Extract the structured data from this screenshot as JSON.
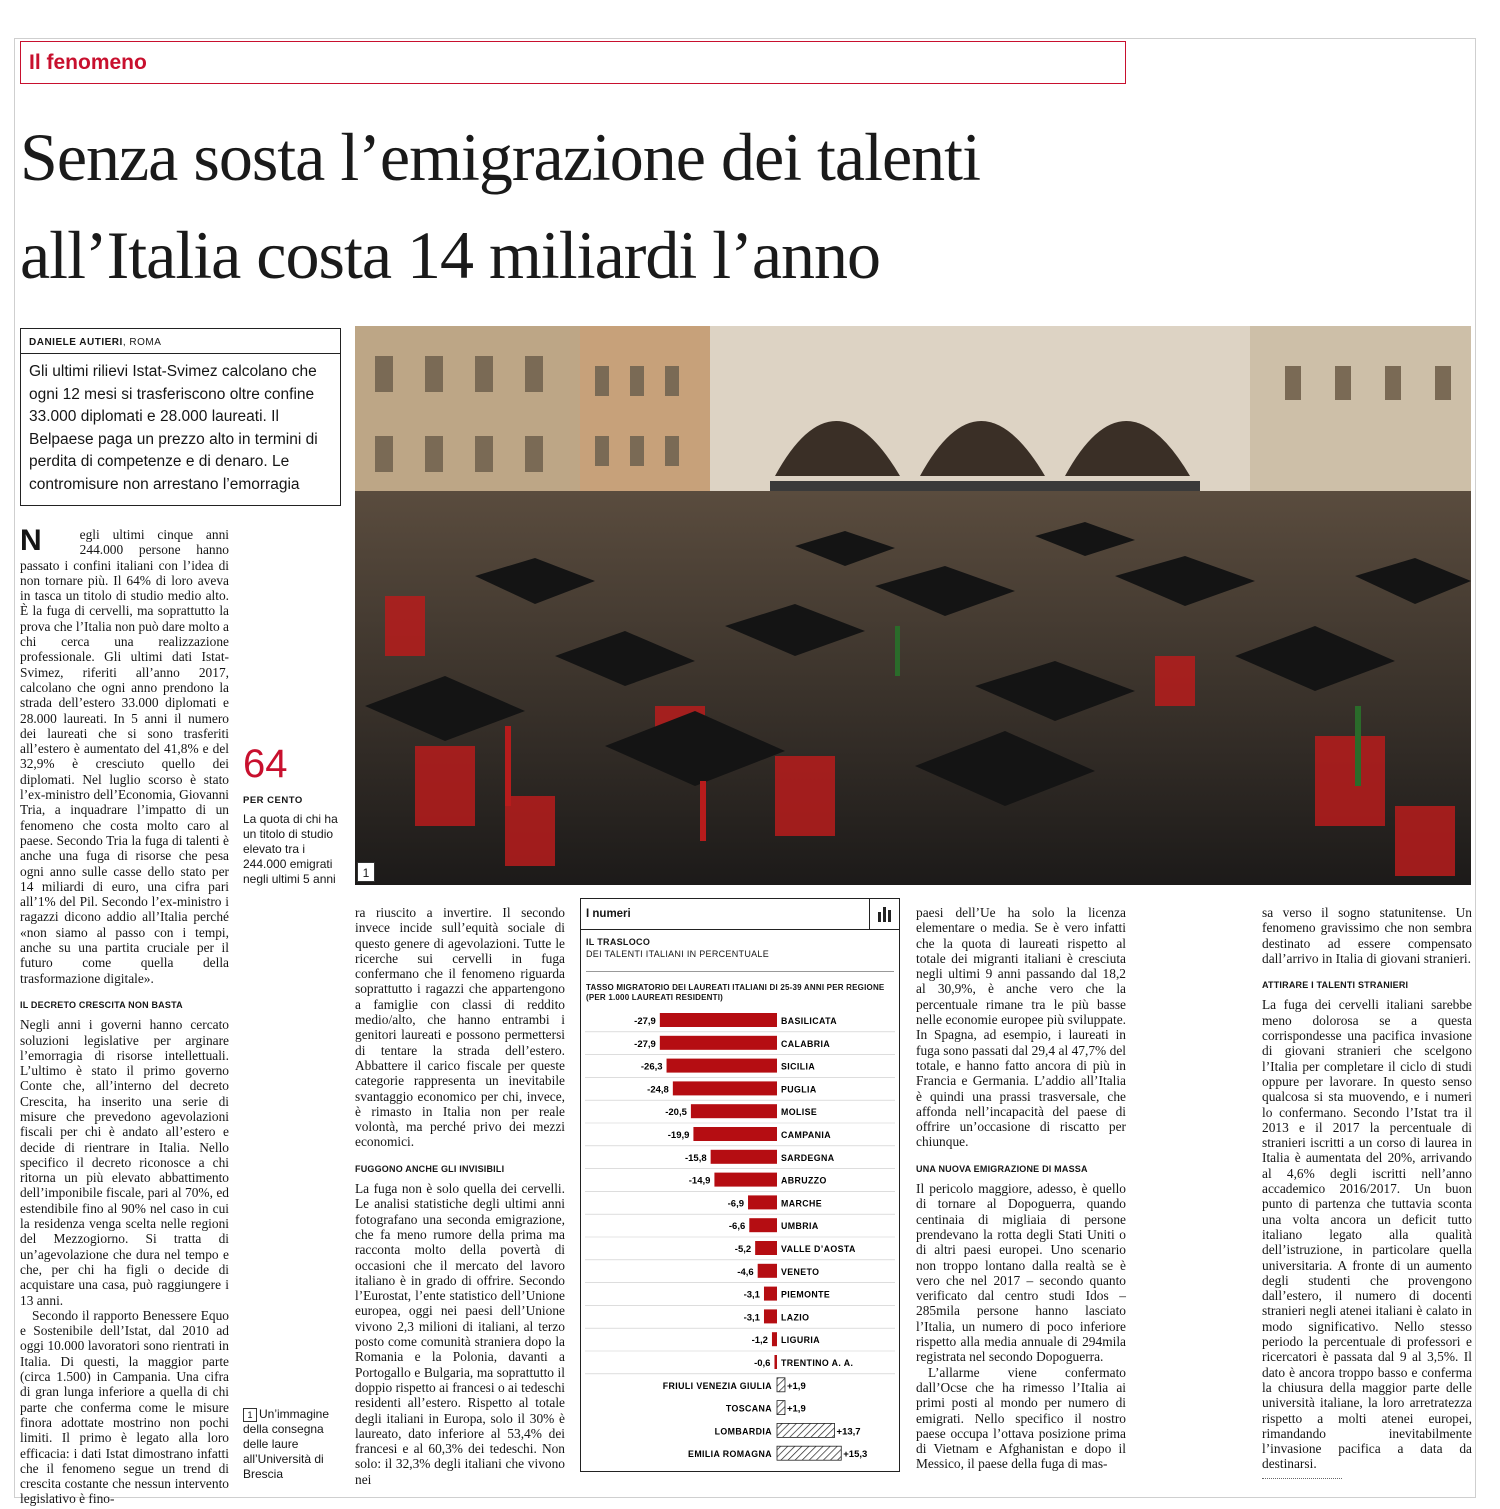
{
  "section": "Il fenomeno",
  "headline": {
    "line1": "Senza sosta l’emigrazione dei talenti",
    "line2": "all’Italia costa 14 miliardi l’anno"
  },
  "byline": {
    "author": "DANIELE AUTIERI",
    "location": ", ROMA"
  },
  "summary": "Gli ultimi rilievi Istat-Svimez calcolano che ogni 12 mesi si trasferiscono oltre confine 33.000 diplomati e 28.000 laureati. Il Belpaese paga un prezzo alto in termini di perdita di competenze e di denaro. Le contromisure non arrestano l’emorragia",
  "photo_number": "1",
  "stat": {
    "value": "64",
    "unit": "PER CENTO",
    "text": "La quota di chi ha un titolo di studio elevato tra i 244.000 emigrati negli ultimi 5 anni"
  },
  "caption": {
    "number": "1",
    "text": "Un’immagine della consegna delle laure all’Università di Brescia"
  },
  "column1": {
    "dropcap": "N",
    "lead": "egli ultimi cinque anni 244.000 persone hanno passato i confini italiani con l’idea di non tornare più. Il 64% di loro aveva in tasca un titolo di studio medio alto. È la fuga di cervelli, ma soprattutto la prova che l’Italia non può dare molto a chi cerca una realizzazione professionale. Gli ultimi dati Istat-Svimez, riferiti all’anno 2017, calcolano che ogni anno prendono la strada dell’estero 33.000 diplomati e 28.000 laureati. In 5 anni il numero dei laureati che si sono trasferiti all’estero è aumentato del 41,8% e del 32,9% è cresciuto quello dei diplomati. Nel luglio scorso è stato l’ex-ministro dell’Economia, Giovanni Tria, a inquadrare l’impatto di un fenomeno che costa molto caro al paese. Secondo Tria la fuga di talenti è anche una fuga di risorse che pesa ogni anno sulle casse dello stato per 14 miliardi di euro, una cifra pari all’1% del Pil. Secondo l’ex-ministro i ragazzi dicono addio all’Italia perché «non siamo al passo con i tempi, anche su una partita cruciale per il futuro come quella della trasformazione digitale».",
    "heading": "IL DECRETO CRESCITA NON BASTA",
    "p2": "Negli anni i governi hanno cercato soluzioni legislative per arginare l’emorragia di risorse intellettuali. L’ultimo è stato il primo governo Conte che, all’interno del decreto Crescita, ha inserito una serie di misure che prevedono agevolazioni fiscali per chi è andato all’estero e decide di rientrare in Italia. Nello specifico il decreto riconosce a chi ritorna un più elevato abbattimento dell’imponibile fiscale, pari al 70%, ed estendibile fino al 90% nel caso in cui la residenza venga scelta nelle regioni del Mezzogiorno. Si tratta di un’agevolazione che dura nel tempo e che, per chi ha figli o decide di acquistare una casa, può raggiungere i 13 anni.",
    "p3": "Secondo il rapporto Benessere Equo e Sostenibile dell’Istat, dal 2010 ad oggi 10.000 lavoratori sono rientrati in Italia. Di questi, la maggior parte (circa 1.500) in Campania. Una cifra di gran lunga inferiore a quella di chi parte che conferma come le misure finora adottate mostrino non pochi limiti. Il primo è legato alla loro efficacia: i dati Istat dimostrano infatti che il fenomeno segue un trend di crescita costante che nessun intervento legislativo è fino-"
  },
  "column2": {
    "p1": "ra riuscito a invertire. Il secondo invece incide sull’equità sociale di questo genere di agevolazioni. Tutte le ricerche sui cervelli in fuga confermano che il fenomeno riguarda soprattutto i ragazzi che appartengono a famiglie con classi di reddito medio/alto, che hanno entrambi i genitori laureati e possono permettersi di tentare la strada dell’estero. Abbattere il carico fiscale per queste categorie rappresenta un inevitabile svantaggio economico per chi, invece, è rimasto in Italia non per reale volontà, ma perché privo dei mezzi economici.",
    "heading": "FUGGONO ANCHE GLI INVISIBILI",
    "p2": "La fuga non è solo quella dei cervelli. Le analisi statistiche degli ultimi anni fotografano una seconda emigrazione, che fa meno rumore della prima ma racconta molto della povertà di occasioni che il mercato del lavoro italiano è in grado di offrire. Secondo l’Eurostat, l’ente statistico dell’Unione europea, oggi nei paesi dell’Unione vivono 2,3 milioni di italiani, al terzo posto come comunità straniera dopo la Romania e la Polonia, davanti a Portogallo e Bulgaria, ma soprattutto il doppio rispetto ai francesi o ai tedeschi residenti all’estero. Rispetto al totale degli italiani in Europa, solo il 30% è laureato, dato inferiore al 53,4% dei francesi e al 60,3% dei tedeschi. Non solo: il 32,3% degli italiani che vivono nei"
  },
  "column3": {
    "p1": "paesi dell’Ue ha solo la licenza elementare o media. Se è vero infatti che la quota di laureati rispetto al totale dei migranti italiani è cresciuta negli ultimi 9 anni passando dal 18,2 al 30,9%, è anche vero che la percentuale rimane tra le più basse nelle economie europee più sviluppate. In Spagna, ad esempio, i laureati in fuga sono passati dal 29,4 al 47,7% del totale, e hanno fatto ancora di più in Francia e Germania. L’addio all’Italia è quindi una prassi trasversale, che affonda nell’incapacità del paese di offrire un’occasione di riscatto per chiunque.",
    "heading": "UNA NUOVA EMIGRAZIONE DI MASSA",
    "p2": "Il pericolo maggiore, adesso, è quello di tornare al Dopoguerra, quando centinaia di migliaia di persone prendevano la rotta degli Stati Uniti o di altri paesi europei. Uno scenario non troppo lontano dalla realtà se è vero che nel 2017 – secondo quanto verificato dal centro studi Idos – 285mila persone hanno lasciato l’Italia, un numero di poco inferiore rispetto alla media annuale di 294mila registrata nel secondo Dopoguerra.",
    "p3": "L’allarme viene confermato dall’Ocse che ha rimesso l’Italia ai primi posti al mondo per numero di emigrati. Nello specifico il nostro paese occupa l’ottava posizione prima di Vietnam e Afghanistan e dopo il Messico, il paese della fuga di mas-"
  },
  "column4": {
    "p1": "sa verso il sogno statunitense. Un fenomeno gravissimo che non sembra destinato ad essere compensato dall’arrivo in Italia di giovani stranieri.",
    "heading": "ATTIRARE I TALENTI STRANIERI",
    "p2": "La fuga dei cervelli italiani sarebbe meno dolorosa se a questa corrispondesse una pacifica invasione di giovani stranieri che scelgono l’Italia per completare il ciclo di studi oppure per lavorare. In questo senso qualcosa si sta muovendo, e i numeri lo confermano. Secondo l’Istat tra il 2013 e il 2017 la percentuale di stranieri iscritti a un corso di laurea in Italia è aumentata del 20%, arrivando al 4,6% degli iscritti nell’anno accademico 2016/2017. Un buon punto di partenza che tuttavia sconta una volta ancora un deficit tutto italiano legato alla qualità dell’istruzione, in particolare quella universitaria. A fronte di un aumento degli studenti che provengono dall’estero, il numero di docenti stranieri negli atenei italiani è calato in modo significativo. Nello stesso periodo la percentuale di professori e ricercatori è passata dal 9 al 3,5%. Il dato è ancora troppo basso e conferma la chiusura della maggior parte delle università italiane, la loro arretratezza rispetto a molti atenei europei, rimandando inevitabilmente l’invasione pacifica a data da destinarsi."
  },
  "infobox": {
    "header": "I numeri",
    "icon": "bar-chart-icon",
    "title": "IL TRASLOCO",
    "subtitle": "DEI TALENTI ITALIANI IN PERCENTUALE"
  },
  "chart_data": {
    "type": "bar",
    "orientation": "horizontal",
    "title": "TASSO MIGRATORIO DEI LAUREATI ITALIANI DI 25-39 ANNI PER REGIONE (PER 1.000 LAUREATI RESIDENTI)",
    "categories": [
      "BASILICATA",
      "CALABRIA",
      "SICILIA",
      "PUGLIA",
      "MOLISE",
      "CAMPANIA",
      "SARDEGNA",
      "ABRUZZO",
      "MARCHE",
      "UMBRIA",
      "VALLE D’AOSTA",
      "VENETO",
      "PIEMONTE",
      "LAZIO",
      "LIGURIA",
      "TRENTINO A. A.",
      "FRIULI VENEZIA GIULIA",
      "TOSCANA",
      "LOMBARDIA",
      "EMILIA ROMAGNA"
    ],
    "values": [
      -27.9,
      -27.9,
      -26.3,
      -24.8,
      -20.5,
      -19.9,
      -15.8,
      -14.9,
      -6.9,
      -6.6,
      -5.2,
      -4.6,
      -3.1,
      -3.1,
      -1.2,
      -0.6,
      1.9,
      1.9,
      13.7,
      15.3
    ],
    "labels": [
      "-27,9",
      "-27,9",
      "-26,3",
      "-24,8",
      "-20,5",
      "-19,9",
      "-15,8",
      "-14,9",
      "-6,9",
      "-6,6",
      "-5,2",
      "-4,6",
      "-3,1",
      "-3,1",
      "-1,2",
      "-0,6",
      "+1,9",
      "+1,9",
      "+13,7",
      "+15,3"
    ],
    "colors": {
      "negative": "#b50d12",
      "positive": "hatched"
    },
    "grid": false
  }
}
